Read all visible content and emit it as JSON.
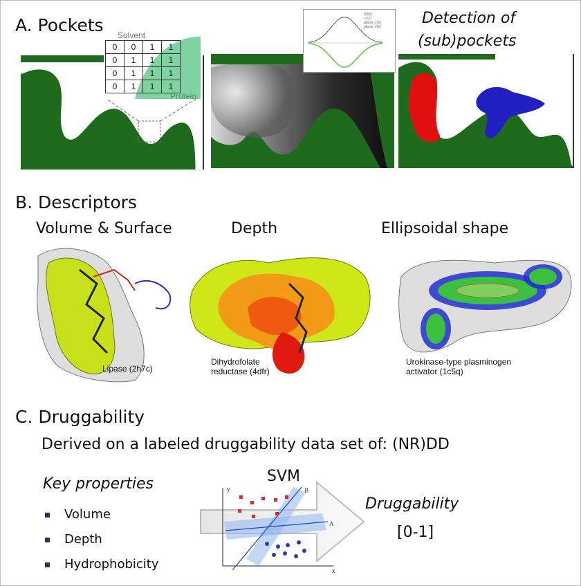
{
  "sections": {
    "a": {
      "title": "A. Pockets",
      "solvent_label": "Solvent",
      "protein_label": "Protein",
      "grid": [
        [
          "0",
          "0",
          "1",
          "1"
        ],
        [
          "0",
          "1",
          "1",
          "1"
        ],
        [
          "0",
          "1",
          "1",
          "1"
        ],
        [
          "0",
          "1",
          "1",
          "1"
        ]
      ],
      "detection_label_line1": "Detection of",
      "detection_label_line2": "(sub)pockets",
      "chart_legend": [
        "Dx(x)",
        "Lx(x)",
        "gauss_1(x)",
        "gauss_2(x)"
      ]
    },
    "b": {
      "title": "B. Descriptors",
      "panels": [
        {
          "heading": "Volume & Surface",
          "caption": "Lipase (2h7c)"
        },
        {
          "heading": "Depth",
          "caption": "Dihydrofolate\nreductase (4dfr)"
        },
        {
          "heading": "Ellipsoidal shape",
          "caption": "Urokinase-type plasminogen\nactivator (1c5q)"
        }
      ]
    },
    "c": {
      "title": "C. Druggability",
      "subtitle": "Derived on a labeled druggability data set of: (NR)DD",
      "key_properties_label": "Key properties",
      "properties": [
        "Volume",
        "Depth",
        "Hydrophobicity"
      ],
      "svm_label": "SVM",
      "svm_axis_y": "y",
      "svm_axis_x": "x",
      "svm_line_a": "A",
      "svm_line_b": "B",
      "output_label": "Druggability",
      "output_range": "[0-1]"
    }
  },
  "colors": {
    "protein_green": "#1e6b1e",
    "red_pocket": "#e01010",
    "blue_pocket": "#2020c0",
    "bullet": "#1f3864",
    "svm_blue": "#1f4fd0"
  }
}
